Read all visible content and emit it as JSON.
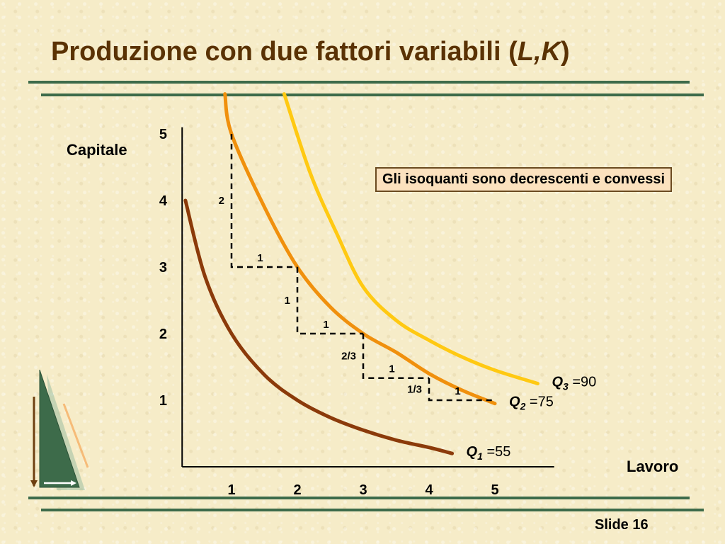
{
  "slide": {
    "title_main": "Produzione con due fattori  variabili (",
    "title_inputs": "L,K",
    "title_end": ")",
    "footer": "Slide 16"
  },
  "callout": "Gli isoquanti sono decrescenti e convessi",
  "colors": {
    "title": "#5a3204",
    "rules": "#3d6b4a",
    "q1": "#8b3a0a",
    "q2": "#f0900d",
    "q3": "#ffc912"
  },
  "chart_data": {
    "type": "line",
    "ylabel": "Capitale",
    "xlabel": "Lavoro",
    "x_ticks": [
      "1",
      "2",
      "3",
      "4",
      "5"
    ],
    "y_ticks": [
      "1",
      "2",
      "3",
      "4",
      "5"
    ],
    "xlim": [
      0.25,
      5.9
    ],
    "ylim": [
      0,
      5.1
    ],
    "series": [
      {
        "name": "Q1 =55",
        "label_prefix": "Q",
        "label_sub": "1",
        "label_value": " =55",
        "color": "#8b3a0a",
        "points": [
          [
            0.3,
            4.0
          ],
          [
            0.6,
            2.85
          ],
          [
            1.0,
            2.0
          ],
          [
            1.5,
            1.38
          ],
          [
            2.0,
            1.0
          ],
          [
            2.5,
            0.74
          ],
          [
            3.0,
            0.55
          ],
          [
            3.5,
            0.4
          ],
          [
            4.0,
            0.29
          ],
          [
            4.35,
            0.2
          ]
        ]
      },
      {
        "name": "Q2 =75",
        "label_prefix": "Q",
        "label_sub": "2",
        "label_value": " =75",
        "color": "#f0900d",
        "points": [
          [
            0.9,
            5.6
          ],
          [
            1.0,
            5.0
          ],
          [
            1.5,
            3.9
          ],
          [
            2.0,
            3.0
          ],
          [
            2.5,
            2.4
          ],
          [
            3.0,
            2.0
          ],
          [
            3.5,
            1.72
          ],
          [
            4.0,
            1.4
          ],
          [
            4.5,
            1.15
          ],
          [
            5.0,
            0.95
          ]
        ]
      },
      {
        "name": "Q3 =90",
        "label_prefix": "Q",
        "label_sub": "3",
        "label_value": " =90",
        "color": "#ffc912",
        "points": [
          [
            1.8,
            5.6
          ],
          [
            2.2,
            4.4
          ],
          [
            2.6,
            3.5
          ],
          [
            3.0,
            2.7
          ],
          [
            3.5,
            2.2
          ],
          [
            4.0,
            1.9
          ],
          [
            4.5,
            1.65
          ],
          [
            5.0,
            1.45
          ],
          [
            5.65,
            1.25
          ]
        ]
      }
    ],
    "mrts_steps": [
      {
        "from": [
          1.0,
          5.0
        ],
        "corner": [
          1.0,
          3.0
        ],
        "to": [
          2.0,
          3.0
        ],
        "dk": "2",
        "dl": "1"
      },
      {
        "from": [
          2.0,
          3.0
        ],
        "corner": [
          2.0,
          2.0
        ],
        "to": [
          3.0,
          2.0
        ],
        "dk": "1",
        "dl": "1"
      },
      {
        "from": [
          3.0,
          2.0
        ],
        "corner": [
          3.0,
          1.333
        ],
        "to": [
          4.0,
          1.333
        ],
        "dk": "2/3",
        "dl": "1"
      },
      {
        "from": [
          4.0,
          1.333
        ],
        "corner": [
          4.0,
          1.0
        ],
        "to": [
          5.0,
          1.0
        ],
        "dk": "1/3",
        "dl": "1"
      }
    ]
  }
}
